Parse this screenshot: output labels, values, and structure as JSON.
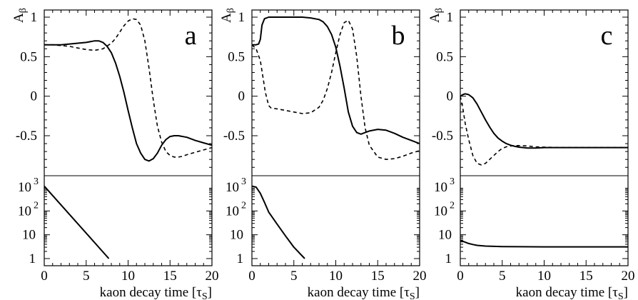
{
  "chart_data": [
    {
      "panel_label": "a",
      "type": "line",
      "top": {
        "ylabel": "A",
        "ylabel_sub": "β",
        "ylim": [
          -1,
          1.05
        ],
        "y_ticks": [
          "1",
          "0.5",
          "0",
          "-0.5"
        ],
        "y_tick_values": [
          1,
          0.5,
          0,
          -0.5
        ],
        "series": [
          {
            "style": "solid",
            "x": [
              0,
              1,
              2,
              3,
              4,
              5,
              6,
              6.5,
              7,
              7.5,
              8,
              8.5,
              9,
              9.5,
              10,
              10.5,
              11,
              11.5,
              12,
              12.5,
              13,
              13.5,
              14,
              14.5,
              15,
              15.5,
              16,
              17,
              18,
              19,
              20
            ],
            "y": [
              0.65,
              0.65,
              0.65,
              0.66,
              0.67,
              0.68,
              0.7,
              0.7,
              0.68,
              0.63,
              0.55,
              0.42,
              0.25,
              0.05,
              -0.18,
              -0.4,
              -0.6,
              -0.72,
              -0.8,
              -0.82,
              -0.79,
              -0.72,
              -0.62,
              -0.55,
              -0.51,
              -0.5,
              -0.5,
              -0.52,
              -0.56,
              -0.59,
              -0.62
            ]
          },
          {
            "style": "dashed",
            "x": [
              0,
              1,
              2,
              3,
              4,
              5,
              6,
              7,
              8,
              8.5,
              9,
              9.5,
              10,
              10.5,
              11,
              11.5,
              12,
              12.5,
              13,
              13.5,
              14,
              14.5,
              15,
              15.5,
              16,
              16.5,
              17,
              18,
              19,
              20
            ],
            "y": [
              0.65,
              0.65,
              0.64,
              0.63,
              0.61,
              0.59,
              0.58,
              0.6,
              0.67,
              0.73,
              0.81,
              0.89,
              0.95,
              0.98,
              0.97,
              0.9,
              0.7,
              0.35,
              -0.05,
              -0.38,
              -0.58,
              -0.7,
              -0.75,
              -0.77,
              -0.77,
              -0.76,
              -0.74,
              -0.71,
              -0.68,
              -0.65
            ]
          }
        ]
      },
      "bottom": {
        "log": true,
        "ylim": [
          1,
          1500
        ],
        "y_ticks": [
          {
            "base": "10",
            "exp": "3",
            "value": 1000
          },
          {
            "base": "10",
            "exp": "2",
            "value": 100
          },
          {
            "base": "10",
            "exp": "",
            "value": 10
          },
          {
            "base": "1",
            "exp": "",
            "value": 1
          }
        ],
        "series": [
          {
            "style": "solid",
            "x": [
              0,
              7.7
            ],
            "y": [
              1100,
              1
            ]
          }
        ]
      },
      "xlabel": "kaon decay time [τ",
      "xlabel_sub": "S",
      "xlabel_end": "]",
      "xlim": [
        0,
        20
      ],
      "x_ticks": [
        "0",
        "5",
        "10",
        "15",
        "20"
      ]
    },
    {
      "panel_label": "b",
      "type": "line",
      "top": {
        "ylabel": "A",
        "ylabel_sub": "β",
        "ylim": [
          -1,
          1.05
        ],
        "y_ticks": [
          "1",
          "0.5",
          "0",
          "-0.5"
        ],
        "y_tick_values": [
          1,
          0.5,
          0,
          -0.5
        ],
        "series": [
          {
            "style": "solid",
            "x": [
              0,
              0.5,
              0.8,
              1,
              1.2,
              1.5,
              2,
              3,
              4,
              5,
              6,
              7,
              8,
              8.5,
              9,
              9.5,
              10,
              10.5,
              11,
              11.5,
              12,
              12.5,
              13,
              13.5,
              14,
              15,
              16,
              17,
              18,
              19,
              20
            ],
            "y": [
              0.65,
              0.65,
              0.66,
              0.72,
              0.9,
              0.98,
              1.0,
              1.0,
              1.0,
              1.0,
              1.0,
              0.99,
              0.97,
              0.94,
              0.88,
              0.78,
              0.62,
              0.38,
              0.1,
              -0.2,
              -0.38,
              -0.46,
              -0.48,
              -0.46,
              -0.44,
              -0.42,
              -0.43,
              -0.47,
              -0.52,
              -0.56,
              -0.6
            ]
          },
          {
            "style": "dashed",
            "x": [
              0,
              0.5,
              1,
              1.3,
              1.6,
              2,
              2.3,
              3,
              4,
              5,
              6,
              7,
              8,
              8.5,
              9,
              9.5,
              10,
              10.5,
              11,
              11.5,
              12,
              12.5,
              13,
              13.5,
              14,
              15,
              16,
              17,
              18,
              19,
              20
            ],
            "y": [
              0.65,
              0.6,
              0.45,
              0.25,
              0.05,
              -0.12,
              -0.15,
              -0.16,
              -0.18,
              -0.2,
              -0.22,
              -0.21,
              -0.14,
              -0.05,
              0.1,
              0.3,
              0.55,
              0.78,
              0.93,
              0.96,
              0.85,
              0.5,
              0.0,
              -0.4,
              -0.62,
              -0.77,
              -0.8,
              -0.79,
              -0.76,
              -0.72,
              -0.69
            ]
          }
        ]
      },
      "bottom": {
        "log": true,
        "ylim": [
          1,
          1500
        ],
        "y_ticks": [
          {
            "base": "10",
            "exp": "3",
            "value": 1000
          },
          {
            "base": "10",
            "exp": "2",
            "value": 100
          },
          {
            "base": "10",
            "exp": "",
            "value": 10
          },
          {
            "base": "1",
            "exp": "",
            "value": 1
          }
        ],
        "series": [
          {
            "style": "solid",
            "x": [
              0,
              0.5,
              1,
              1.5,
              2,
              3,
              4,
              5,
              6.3
            ],
            "y": [
              1100,
              1000,
              550,
              230,
              90,
              28,
              9,
              3,
              1
            ]
          }
        ]
      },
      "xlabel": "kaon decay time [τ",
      "xlabel_sub": "S",
      "xlabel_end": "]",
      "xlim": [
        0,
        20
      ],
      "x_ticks": [
        "0",
        "5",
        "10",
        "15",
        "20"
      ]
    },
    {
      "panel_label": "c",
      "type": "line",
      "top": {
        "ylabel": "A",
        "ylabel_sub": "β",
        "ylim": [
          -1,
          1.05
        ],
        "y_ticks": [
          "1",
          "0.5",
          "0",
          "-0.5"
        ],
        "y_tick_values": [
          1,
          0.5,
          0,
          -0.5
        ],
        "series": [
          {
            "style": "solid",
            "x": [
              0,
              0.3,
              0.6,
              1,
              1.5,
              2,
              2.5,
              3,
              3.5,
              4,
              4.5,
              5,
              5.5,
              6,
              6.5,
              7,
              7.5,
              8,
              9,
              10,
              12,
              15,
              20
            ],
            "y": [
              0.0,
              0.02,
              0.03,
              0.02,
              -0.02,
              -0.1,
              -0.2,
              -0.3,
              -0.39,
              -0.47,
              -0.53,
              -0.57,
              -0.6,
              -0.62,
              -0.635,
              -0.645,
              -0.65,
              -0.655,
              -0.655,
              -0.65,
              -0.65,
              -0.65,
              -0.65
            ]
          },
          {
            "style": "dashed",
            "x": [
              0,
              0.3,
              0.6,
              1,
              1.5,
              2,
              2.5,
              3,
              3.5,
              4,
              4.5,
              5,
              5.5,
              6,
              6.5,
              7,
              8,
              9,
              10,
              12,
              15,
              20
            ],
            "y": [
              0.0,
              -0.15,
              -0.35,
              -0.55,
              -0.75,
              -0.85,
              -0.87,
              -0.85,
              -0.8,
              -0.75,
              -0.7,
              -0.66,
              -0.64,
              -0.63,
              -0.625,
              -0.625,
              -0.63,
              -0.64,
              -0.645,
              -0.65,
              -0.65,
              -0.65
            ]
          }
        ]
      },
      "bottom": {
        "log": true,
        "ylim": [
          1,
          1500
        ],
        "y_ticks": [
          {
            "base": "10",
            "exp": "3",
            "value": 1000
          },
          {
            "base": "10",
            "exp": "2",
            "value": 100
          },
          {
            "base": "10",
            "exp": "",
            "value": 10
          },
          {
            "base": "1",
            "exp": "",
            "value": 1
          }
        ],
        "series": [
          {
            "style": "solid",
            "x": [
              0,
              0.5,
              1,
              1.5,
              2,
              3,
              4,
              5,
              7,
              10,
              15,
              20
            ],
            "y": [
              5.8,
              5.0,
              4.3,
              3.9,
              3.6,
              3.35,
              3.25,
              3.2,
              3.15,
              3.1,
              3.1,
              3.1
            ]
          }
        ]
      },
      "xlabel": "kaon decay time [τ",
      "xlabel_sub": "S",
      "xlabel_end": "]",
      "xlim": [
        0,
        20
      ],
      "x_ticks": [
        "0",
        "5",
        "10",
        "15",
        "20"
      ]
    }
  ]
}
